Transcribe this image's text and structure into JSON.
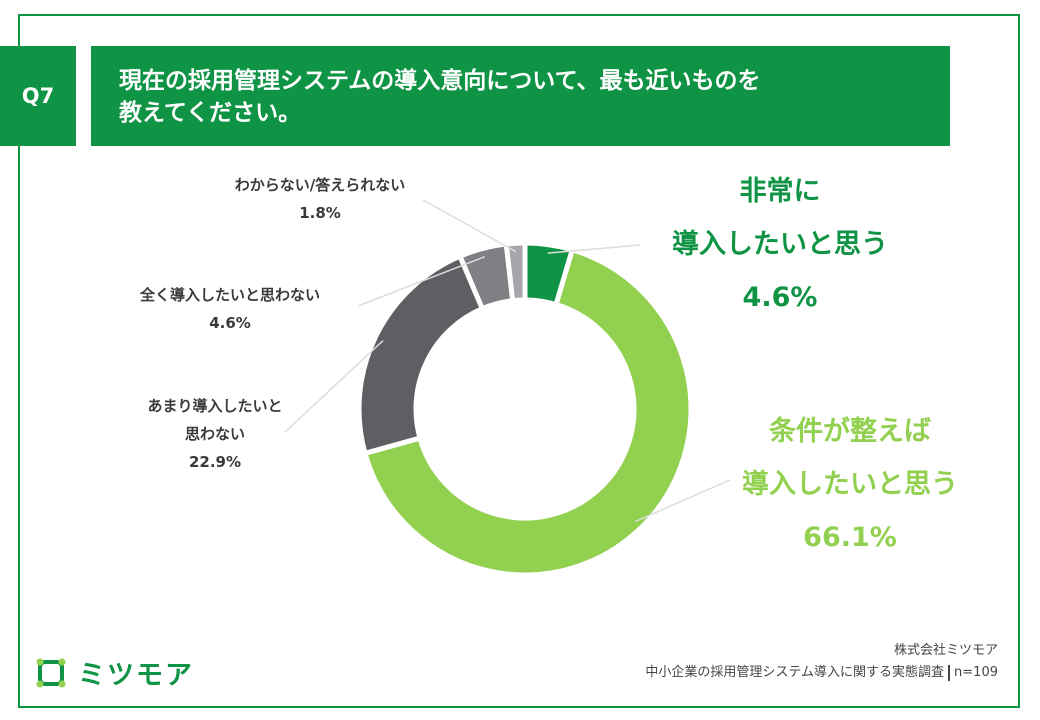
{
  "question": {
    "badge": "Q7",
    "line1": "現在の採用管理システムの導入意向について、最も近いものを",
    "line2": "教えてください。"
  },
  "chart_data": {
    "type": "pie",
    "title": "現在の採用管理システムの導入意向について、最も近いものを教えてください。",
    "start": "12 o'clock, clockwise",
    "slices": [
      {
        "label_lines": [
          "非常に",
          "導入したいと思う"
        ],
        "value": 4.6,
        "value_text": "4.6%",
        "color": "#0f9344"
      },
      {
        "label_lines": [
          "条件が整えば",
          "導入したいと思う"
        ],
        "value": 66.1,
        "value_text": "66.1%",
        "color": "#92d050"
      },
      {
        "label_lines": [
          "あまり導入したいと",
          "思わない"
        ],
        "value": 22.9,
        "value_text": "22.9%",
        "color": "#5e5e63"
      },
      {
        "label_lines": [
          "全く導入したいと思わない"
        ],
        "value": 4.6,
        "value_text": "4.6%",
        "color": "#7f7f84"
      },
      {
        "label_lines": [
          "わからない/答えられない"
        ],
        "value": 1.8,
        "value_text": "1.8%",
        "color": "#a5a5aa"
      }
    ]
  },
  "footer": {
    "company": "株式会社ミツモア",
    "survey": "中小企業の採用管理システム導入に関する実態調査",
    "n": "n=109"
  },
  "logo": {
    "text": "ミツモア",
    "color": "#0f9344"
  }
}
